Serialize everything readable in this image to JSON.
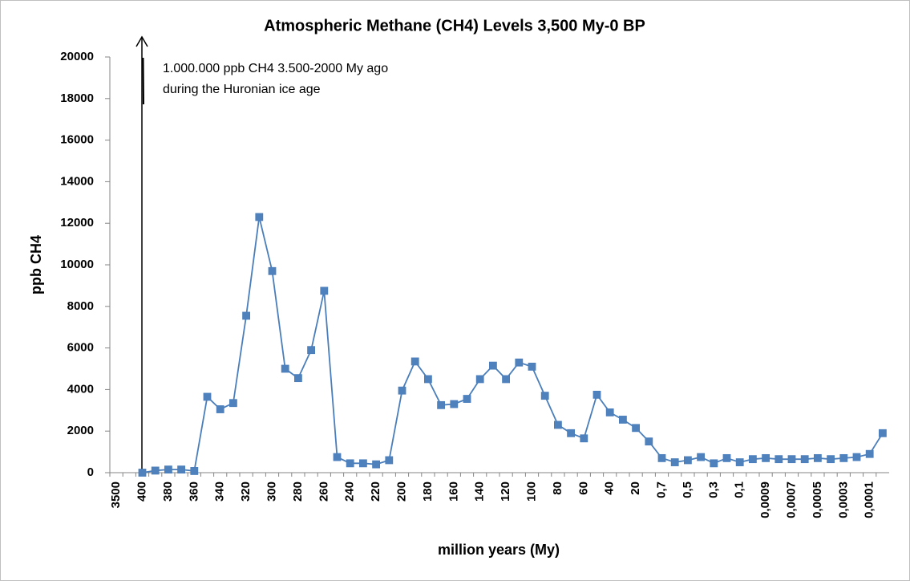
{
  "chart_data": {
    "type": "line",
    "title": "Atmospheric  Methane (CH4) Levels 3,500 My-0 BP",
    "x_label": "million years (My)",
    "y_label": "ppb CH4",
    "annotations": [
      "1.000.000 ppb CH4 3.500-2000 My ago",
      "during the Huronian ice age"
    ],
    "categories": [
      "3500",
      null,
      "400",
      null,
      "380",
      null,
      "360",
      null,
      "340",
      null,
      "320",
      null,
      "300",
      null,
      "280",
      null,
      "260",
      null,
      "240",
      null,
      "220",
      null,
      "200",
      null,
      "180",
      null,
      "160",
      null,
      "140",
      null,
      "120",
      null,
      "100",
      null,
      "80",
      null,
      "60",
      null,
      "40",
      null,
      "20",
      null,
      "0,7",
      null,
      "0,5",
      null,
      "0,3",
      null,
      "0,1",
      null,
      "0,0009",
      null,
      "0,0007",
      null,
      "0,0005",
      null,
      "0,0003",
      null,
      "0,0001",
      null
    ],
    "series": [
      {
        "name": "CH4",
        "color": "#4a7ebb",
        "marker_color": "#4f81bd",
        "values": [
          null,
          null,
          0,
          100,
          150,
          150,
          80,
          3650,
          3050,
          3350,
          7550,
          12300,
          9700,
          5000,
          4550,
          5900,
          8750,
          750,
          450,
          450,
          400,
          600,
          3950,
          5350,
          4500,
          3250,
          3300,
          3550,
          4500,
          5150,
          4500,
          5300,
          5100,
          3700,
          2300,
          1900,
          1650,
          3750,
          2900,
          2550,
          2150,
          1500,
          700,
          500,
          600,
          750,
          450,
          700,
          500,
          650,
          700,
          650,
          650,
          650,
          700,
          650,
          700,
          750,
          900,
          1900
        ]
      }
    ],
    "ylim": [
      0,
      20000
    ],
    "yticks": [
      0,
      2000,
      4000,
      6000,
      8000,
      10000,
      12000,
      14000,
      16000,
      18000,
      20000
    ],
    "grid": false
  }
}
